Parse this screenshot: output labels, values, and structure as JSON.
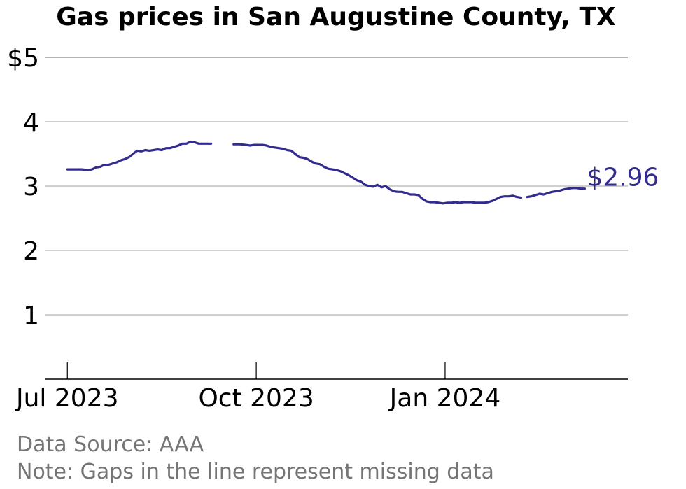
{
  "chart_data": {
    "type": "line",
    "title": "Gas prices in San Augustine County, TX",
    "xlabel": "",
    "ylabel": "",
    "ylim": [
      0,
      5
    ],
    "y_ticks": [
      {
        "value": 5,
        "label": "$5"
      },
      {
        "value": 4,
        "label": "4"
      },
      {
        "value": 3,
        "label": "3"
      },
      {
        "value": 2,
        "label": "2"
      },
      {
        "value": 1,
        "label": "1"
      }
    ],
    "x_ticks": [
      {
        "date": "2023-07-01",
        "label": "Jul 2023"
      },
      {
        "date": "2023-10-01",
        "label": "Oct 2023"
      },
      {
        "date": "2024-01-01",
        "label": "Jan 2024"
      }
    ],
    "xlim": [
      "2023-06-20",
      "2024-03-30"
    ],
    "grid": true,
    "line_color": "#332c8f",
    "series": [
      {
        "segments": [
          [
            [
              "2023-07-01",
              3.26
            ],
            [
              "2023-07-05",
              3.26
            ],
            [
              "2023-07-08",
              3.26
            ],
            [
              "2023-07-11",
              3.25
            ],
            [
              "2023-07-13",
              3.26
            ],
            [
              "2023-07-15",
              3.29
            ],
            [
              "2023-07-17",
              3.3
            ],
            [
              "2023-07-19",
              3.33
            ],
            [
              "2023-07-21",
              3.33
            ],
            [
              "2023-07-23",
              3.35
            ],
            [
              "2023-07-25",
              3.37
            ],
            [
              "2023-07-27",
              3.4
            ],
            [
              "2023-07-29",
              3.42
            ],
            [
              "2023-07-31",
              3.45
            ],
            [
              "2023-08-02",
              3.5
            ],
            [
              "2023-08-04",
              3.55
            ],
            [
              "2023-08-06",
              3.54
            ],
            [
              "2023-08-08",
              3.56
            ],
            [
              "2023-08-10",
              3.55
            ],
            [
              "2023-08-12",
              3.56
            ],
            [
              "2023-08-14",
              3.57
            ],
            [
              "2023-08-16",
              3.56
            ],
            [
              "2023-08-18",
              3.59
            ],
            [
              "2023-08-20",
              3.59
            ],
            [
              "2023-08-22",
              3.61
            ],
            [
              "2023-08-24",
              3.63
            ],
            [
              "2023-08-26",
              3.66
            ],
            [
              "2023-08-28",
              3.66
            ],
            [
              "2023-08-30",
              3.69
            ],
            [
              "2023-09-01",
              3.68
            ],
            [
              "2023-09-03",
              3.66
            ],
            [
              "2023-09-06",
              3.66
            ],
            [
              "2023-09-09",
              3.66
            ]
          ],
          [
            [
              "2023-09-20",
              3.65
            ],
            [
              "2023-09-23",
              3.65
            ],
            [
              "2023-09-26",
              3.64
            ],
            [
              "2023-09-28",
              3.63
            ],
            [
              "2023-09-30",
              3.64
            ],
            [
              "2023-10-02",
              3.64
            ],
            [
              "2023-10-04",
              3.64
            ],
            [
              "2023-10-06",
              3.63
            ],
            [
              "2023-10-08",
              3.61
            ],
            [
              "2023-10-10",
              3.6
            ],
            [
              "2023-10-12",
              3.59
            ],
            [
              "2023-10-14",
              3.58
            ],
            [
              "2023-10-16",
              3.56
            ],
            [
              "2023-10-18",
              3.55
            ],
            [
              "2023-10-20",
              3.5
            ],
            [
              "2023-10-22",
              3.45
            ],
            [
              "2023-10-24",
              3.44
            ],
            [
              "2023-10-26",
              3.42
            ],
            [
              "2023-10-28",
              3.38
            ],
            [
              "2023-10-30",
              3.35
            ],
            [
              "2023-11-01",
              3.34
            ],
            [
              "2023-11-03",
              3.3
            ],
            [
              "2023-11-05",
              3.27
            ],
            [
              "2023-11-07",
              3.26
            ],
            [
              "2023-11-09",
              3.25
            ],
            [
              "2023-11-11",
              3.23
            ],
            [
              "2023-11-13",
              3.2
            ],
            [
              "2023-11-15",
              3.17
            ],
            [
              "2023-11-17",
              3.13
            ],
            [
              "2023-11-19",
              3.09
            ],
            [
              "2023-11-21",
              3.07
            ],
            [
              "2023-11-23",
              3.02
            ],
            [
              "2023-11-25",
              3.0
            ],
            [
              "2023-11-27",
              2.99
            ],
            [
              "2023-11-29",
              3.02
            ],
            [
              "2023-12-01",
              2.98
            ],
            [
              "2023-12-03",
              3.0
            ],
            [
              "2023-12-05",
              2.95
            ],
            [
              "2023-12-07",
              2.92
            ],
            [
              "2023-12-09",
              2.91
            ],
            [
              "2023-12-11",
              2.91
            ],
            [
              "2023-12-13",
              2.89
            ],
            [
              "2023-12-15",
              2.87
            ],
            [
              "2023-12-17",
              2.87
            ],
            [
              "2023-12-19",
              2.86
            ],
            [
              "2023-12-21",
              2.8
            ],
            [
              "2023-12-23",
              2.76
            ],
            [
              "2023-12-25",
              2.75
            ],
            [
              "2023-12-27",
              2.75
            ],
            [
              "2023-12-29",
              2.74
            ],
            [
              "2023-12-31",
              2.73
            ],
            [
              "2024-01-02",
              2.74
            ],
            [
              "2024-01-04",
              2.74
            ],
            [
              "2024-01-06",
              2.75
            ],
            [
              "2024-01-08",
              2.74
            ],
            [
              "2024-01-10",
              2.75
            ],
            [
              "2024-01-12",
              2.75
            ],
            [
              "2024-01-14",
              2.75
            ],
            [
              "2024-01-16",
              2.74
            ],
            [
              "2024-01-18",
              2.74
            ],
            [
              "2024-01-20",
              2.74
            ],
            [
              "2024-01-22",
              2.75
            ],
            [
              "2024-01-24",
              2.77
            ],
            [
              "2024-01-26",
              2.8
            ],
            [
              "2024-01-28",
              2.83
            ],
            [
              "2024-01-30",
              2.84
            ],
            [
              "2024-02-01",
              2.84
            ],
            [
              "2024-02-03",
              2.85
            ],
            [
              "2024-02-05",
              2.83
            ],
            [
              "2024-02-07",
              2.82
            ]
          ],
          [
            [
              "2024-02-10",
              2.83
            ],
            [
              "2024-02-12",
              2.84
            ],
            [
              "2024-02-14",
              2.86
            ],
            [
              "2024-02-16",
              2.88
            ],
            [
              "2024-02-18",
              2.87
            ],
            [
              "2024-02-20",
              2.89
            ],
            [
              "2024-02-22",
              2.91
            ],
            [
              "2024-02-24",
              2.92
            ],
            [
              "2024-02-26",
              2.93
            ],
            [
              "2024-02-28",
              2.95
            ],
            [
              "2024-03-01",
              2.96
            ],
            [
              "2024-03-03",
              2.97
            ],
            [
              "2024-03-05",
              2.97
            ],
            [
              "2024-03-07",
              2.96
            ],
            [
              "2024-03-09",
              2.96
            ]
          ]
        ]
      }
    ],
    "last_value_label": "$2.96"
  },
  "footer": {
    "source": "Data Source: AAA",
    "note": "Note: Gaps in the line represent missing data"
  }
}
